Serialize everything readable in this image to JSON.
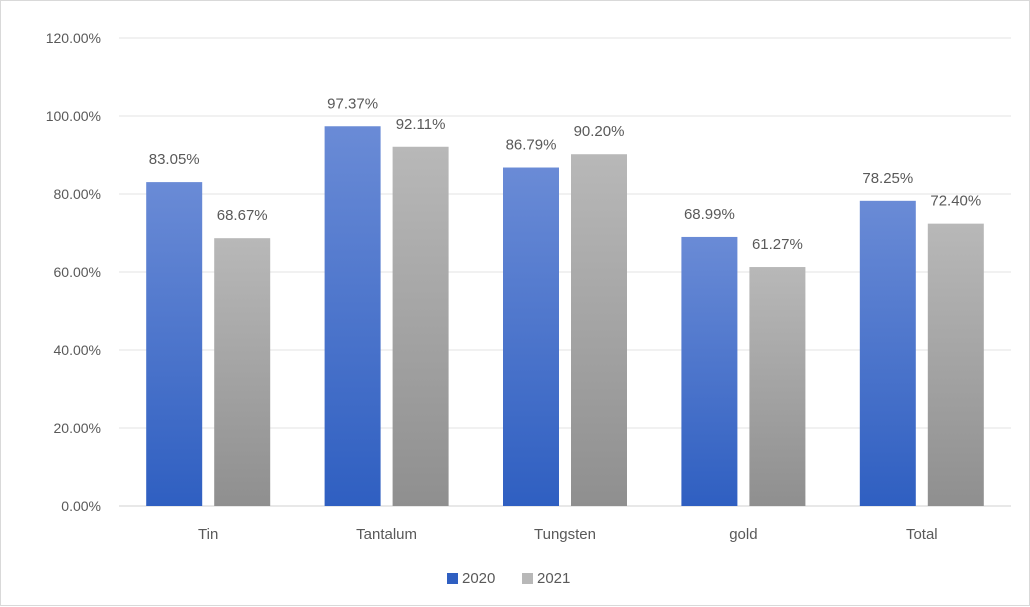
{
  "chart_data": {
    "type": "bar",
    "categories": [
      "Tin",
      "Tantalum",
      "Tungsten",
      "gold",
      "Total"
    ],
    "series": [
      {
        "name": "2020",
        "values": [
          83.05,
          97.37,
          86.79,
          68.99,
          78.25
        ],
        "labels": [
          "83.05%",
          "97.37%",
          "86.79%",
          "68.99%",
          "78.25%"
        ]
      },
      {
        "name": "2021",
        "values": [
          68.67,
          92.11,
          90.2,
          61.27,
          72.4
        ],
        "labels": [
          "68.67%",
          "92.11%",
          "90.20%",
          "61.27%",
          "72.40%"
        ]
      }
    ],
    "ylim": [
      0,
      120
    ],
    "yticks": [
      0,
      20,
      40,
      60,
      80,
      100,
      120
    ],
    "ytick_labels": [
      "0.00%",
      "20.00%",
      "40.00%",
      "60.00%",
      "80.00%",
      "100.00%",
      "120.00%"
    ],
    "grid": true,
    "legend_position": "bottom",
    "colors": {
      "2020_top": "#6a8bd6",
      "2020_bottom": "#2f5fc1",
      "2021_top": "#b8b8b8",
      "2021_bottom": "#8f8f8f"
    }
  }
}
